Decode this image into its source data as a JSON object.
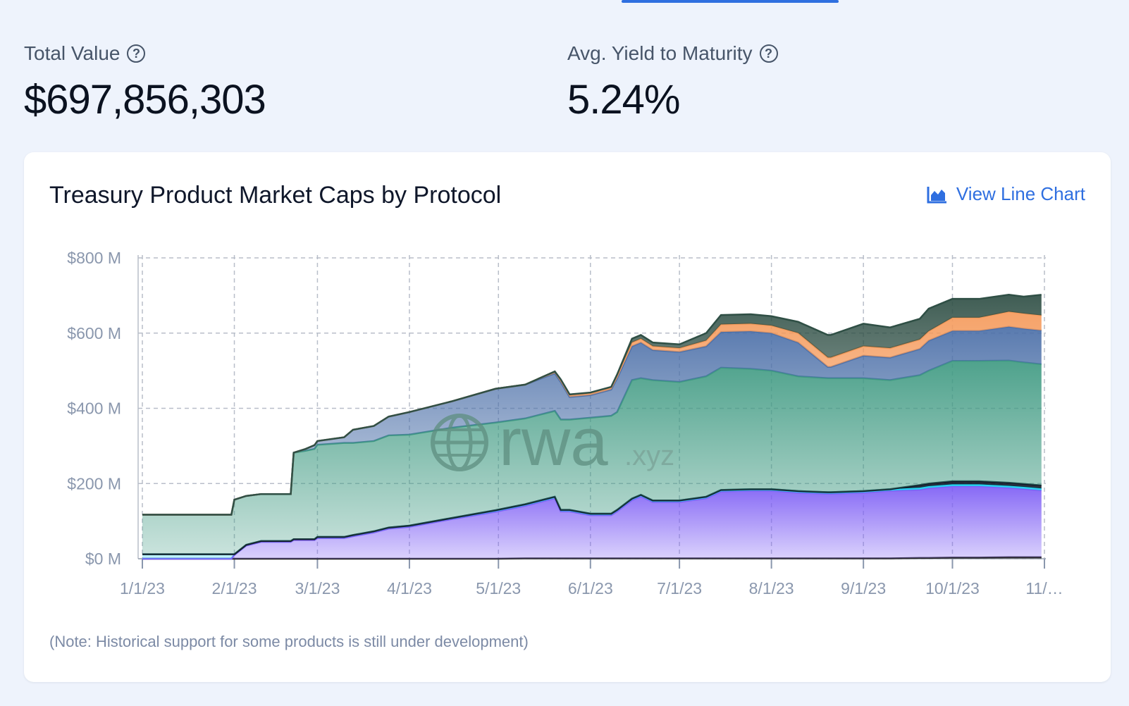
{
  "stats": [
    {
      "label": "Total Value",
      "value": "$697,856,303"
    },
    {
      "label": "Avg. Yield to Maturity",
      "value": "5.24%"
    }
  ],
  "help_icon_glyph": "?",
  "card": {
    "title": "Treasury Product Market Caps by Protocol",
    "view_line_chart_label": "View Line Chart",
    "view_line_chart_icon": "area-chart-icon",
    "note": "(Note: Historical support for some products is still under development)"
  },
  "watermark": {
    "main": "rwa",
    "suffix": ".xyz",
    "icon": "globe-icon"
  },
  "chart_data": {
    "type": "area",
    "stacked": true,
    "title": "Treasury Product Market Caps by Protocol",
    "xlabel": "",
    "ylabel": "",
    "ylim": [
      0,
      800
    ],
    "y_unit": "$M",
    "y_ticks": [
      "$0 M",
      "$200 M",
      "$400 M",
      "$600 M",
      "$800 M"
    ],
    "x_ticks": [
      "1/1/23",
      "2/1/23",
      "3/1/23",
      "4/1/23",
      "5/1/23",
      "6/1/23",
      "7/1/23",
      "8/1/23",
      "9/1/23",
      "10/1/23",
      "11/…"
    ],
    "x": [
      "2023-01-01",
      "2023-01-31",
      "2023-02-01",
      "2023-02-05",
      "2023-02-10",
      "2023-02-20",
      "2023-02-21",
      "2023-02-25",
      "2023-02-28",
      "2023-03-01",
      "2023-03-10",
      "2023-03-13",
      "2023-03-20",
      "2023-03-25",
      "2023-04-01",
      "2023-04-15",
      "2023-04-30",
      "2023-05-10",
      "2023-05-20",
      "2023-05-22",
      "2023-05-25",
      "2023-06-01",
      "2023-06-08",
      "2023-06-10",
      "2023-06-15",
      "2023-06-18",
      "2023-06-22",
      "2023-07-01",
      "2023-07-10",
      "2023-07-15",
      "2023-07-25",
      "2023-08-01",
      "2023-08-10",
      "2023-08-20",
      "2023-08-21",
      "2023-09-01",
      "2023-09-10",
      "2023-09-20",
      "2023-09-23",
      "2023-10-01",
      "2023-10-10",
      "2023-10-20",
      "2023-10-25",
      "2023-10-31"
    ],
    "grid": true,
    "legend": "none",
    "series": [
      {
        "color": "#2a2a2a",
        "values": [
          0,
          0,
          0,
          0,
          0,
          0,
          0,
          0,
          0,
          0,
          0,
          0,
          0,
          0,
          0,
          0,
          0,
          1,
          1,
          1,
          1,
          1,
          1,
          1,
          1,
          1,
          1,
          1,
          1,
          1,
          1,
          1,
          1,
          1,
          1,
          1,
          1,
          2,
          2,
          3,
          3,
          4,
          4,
          4
        ]
      },
      {
        "color": "#7c5cf5",
        "values": [
          0,
          0,
          10,
          35,
          45,
          45,
          50,
          50,
          50,
          55,
          55,
          60,
          70,
          80,
          85,
          105,
          125,
          140,
          160,
          125,
          125,
          115,
          115,
          125,
          155,
          165,
          150,
          150,
          160,
          178,
          180,
          180,
          175,
          172,
          172,
          175,
          180,
          182,
          186,
          190,
          190,
          185,
          182,
          178
        ]
      },
      {
        "color": "#22d3ee",
        "values": [
          12,
          12,
          2,
          2,
          2,
          2,
          2,
          2,
          2,
          3,
          3,
          3,
          3,
          3,
          3,
          3,
          4,
          4,
          4,
          4,
          4,
          4,
          4,
          4,
          4,
          4,
          4,
          4,
          4,
          4,
          4,
          4,
          4,
          4,
          4,
          4,
          4,
          5,
          5,
          5,
          5,
          5,
          5,
          5
        ]
      },
      {
        "color": "#111827",
        "values": [
          0,
          0,
          0,
          0,
          0,
          0,
          0,
          0,
          0,
          0,
          0,
          0,
          0,
          0,
          0,
          0,
          0,
          0,
          0,
          0,
          0,
          0,
          0,
          0,
          0,
          0,
          0,
          0,
          0,
          0,
          0,
          0,
          0,
          0,
          0,
          0,
          0,
          7,
          7,
          8,
          8,
          8,
          8,
          8
        ]
      },
      {
        "color": "#3f9a82",
        "values": [
          105,
          105,
          145,
          130,
          125,
          125,
          230,
          235,
          240,
          245,
          250,
          245,
          240,
          245,
          242,
          240,
          233,
          228,
          228,
          240,
          240,
          255,
          260,
          260,
          315,
          310,
          320,
          315,
          320,
          325,
          320,
          315,
          305,
          303,
          303,
          300,
          290,
          292,
          300,
          320,
          320,
          325,
          323,
          322
        ]
      },
      {
        "color": "#4b6fa8",
        "values": [
          0,
          0,
          0,
          0,
          0,
          0,
          0,
          5,
          10,
          10,
          15,
          35,
          40,
          50,
          60,
          70,
          90,
          90,
          100,
          100,
          60,
          60,
          70,
          90,
          90,
          95,
          80,
          80,
          80,
          95,
          100,
          100,
          90,
          30,
          30,
          60,
          60,
          70,
          80,
          80,
          80,
          90,
          90,
          90
        ]
      },
      {
        "color": "#f59a5b",
        "values": [
          0,
          0,
          0,
          0,
          0,
          0,
          0,
          0,
          0,
          0,
          0,
          0,
          0,
          0,
          0,
          0,
          0,
          0,
          5,
          5,
          5,
          5,
          5,
          5,
          10,
          10,
          10,
          10,
          15,
          20,
          20,
          20,
          25,
          25,
          25,
          25,
          25,
          25,
          25,
          35,
          35,
          40,
          40,
          40
        ]
      },
      {
        "color": "#2f4f45",
        "values": [
          0,
          0,
          0,
          0,
          0,
          0,
          0,
          0,
          0,
          0,
          0,
          0,
          0,
          0,
          0,
          0,
          0,
          0,
          0,
          2,
          2,
          2,
          2,
          5,
          10,
          10,
          10,
          10,
          20,
          25,
          25,
          25,
          30,
          60,
          60,
          60,
          55,
          55,
          60,
          50,
          50,
          45,
          45,
          55
        ]
      }
    ]
  }
}
